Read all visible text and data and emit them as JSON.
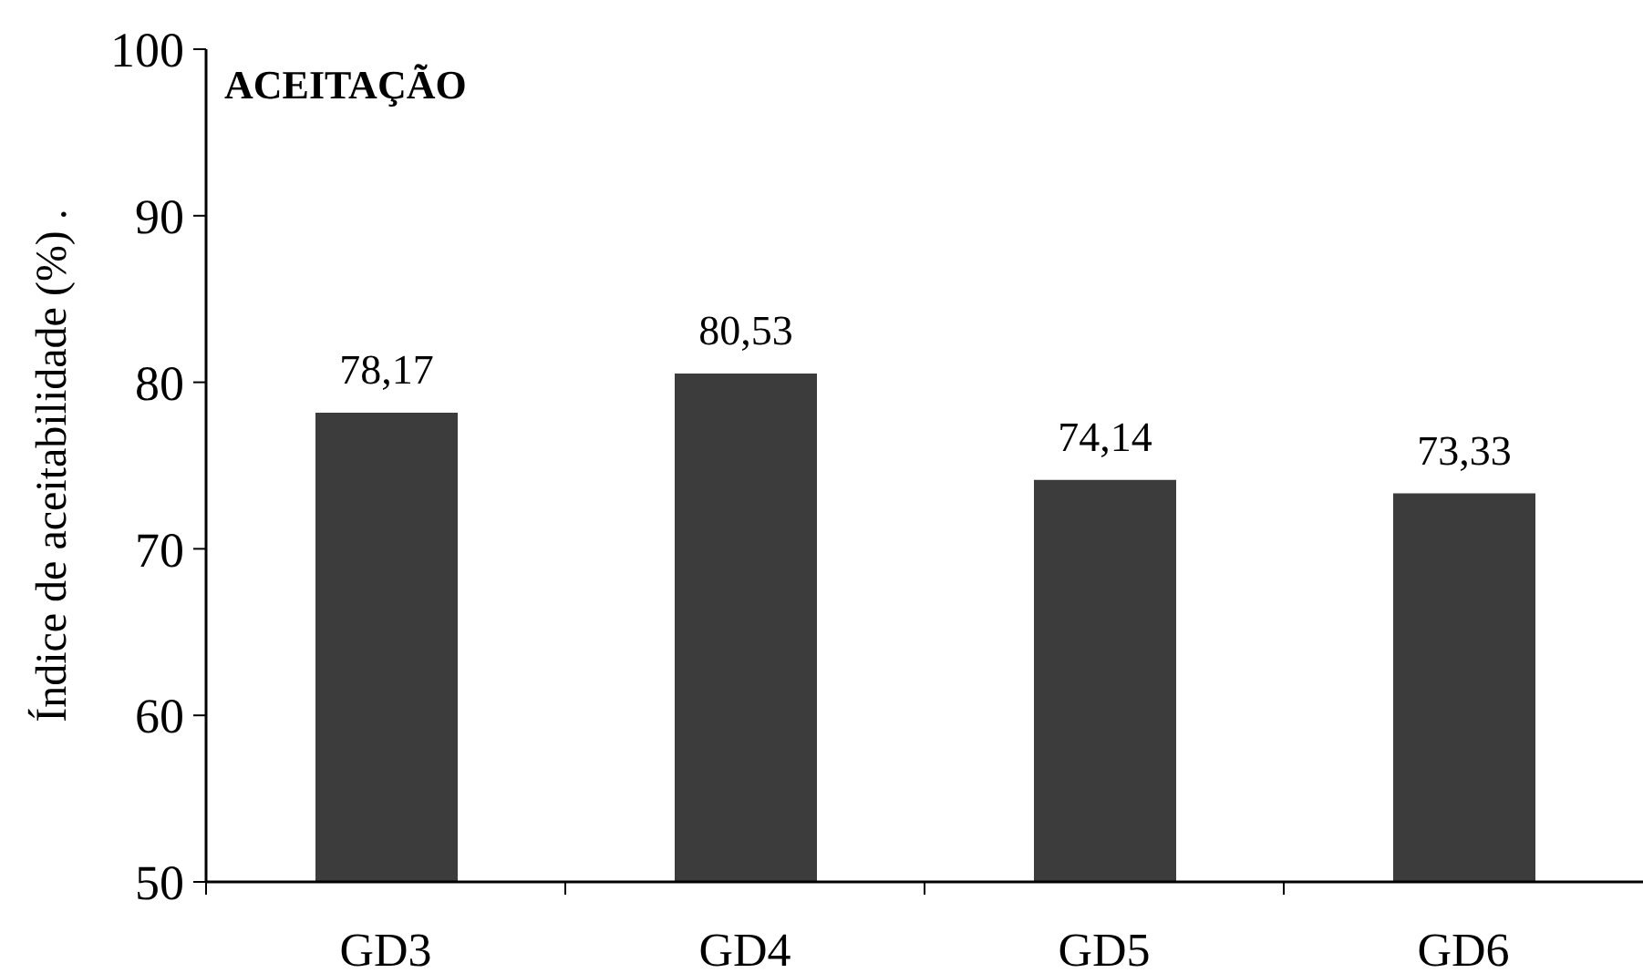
{
  "chart_data": {
    "type": "bar",
    "title": "ACEITAÇÃO",
    "ylabel": "Índice de aceitabilidade (%) .",
    "categories": [
      "GD3",
      "GD4",
      "GD5",
      "GD6"
    ],
    "values": [
      78.17,
      80.53,
      74.14,
      73.33
    ],
    "value_labels": [
      "78,17",
      "80,53",
      "74,14",
      "73,33"
    ],
    "color": "#3c3c3c",
    "ylim": [
      50,
      100
    ],
    "yticks": [
      50,
      60,
      70,
      80,
      90,
      100
    ]
  }
}
